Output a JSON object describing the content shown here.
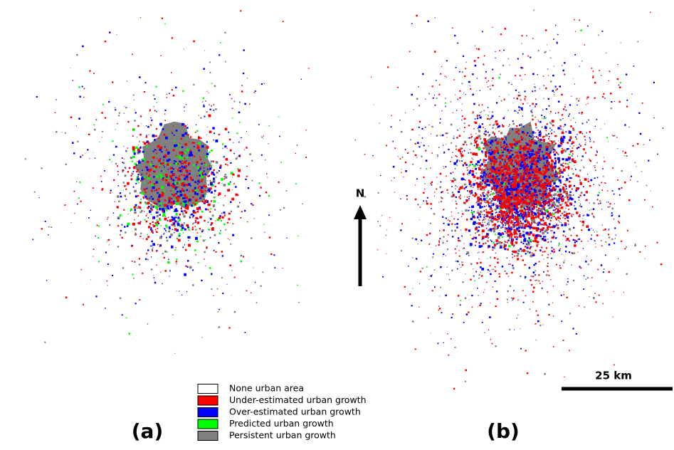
{
  "panels": [
    {
      "label": "(a)"
    },
    {
      "label": "(b)"
    }
  ],
  "north_arrow": {
    "label": "N"
  },
  "scale_bar": {
    "label": "25 km"
  },
  "legend": {
    "items": [
      {
        "label": "None urban area",
        "color": "#ffffff"
      },
      {
        "label": "Under-estimated urban growth",
        "color": "#ff0000"
      },
      {
        "label": "Over-estimated urban growth",
        "color": "#0000ff"
      },
      {
        "label": "Predicted urban growth",
        "color": "#00ff00"
      },
      {
        "label": "Persistent urban growth",
        "color": "#808080"
      }
    ]
  }
}
